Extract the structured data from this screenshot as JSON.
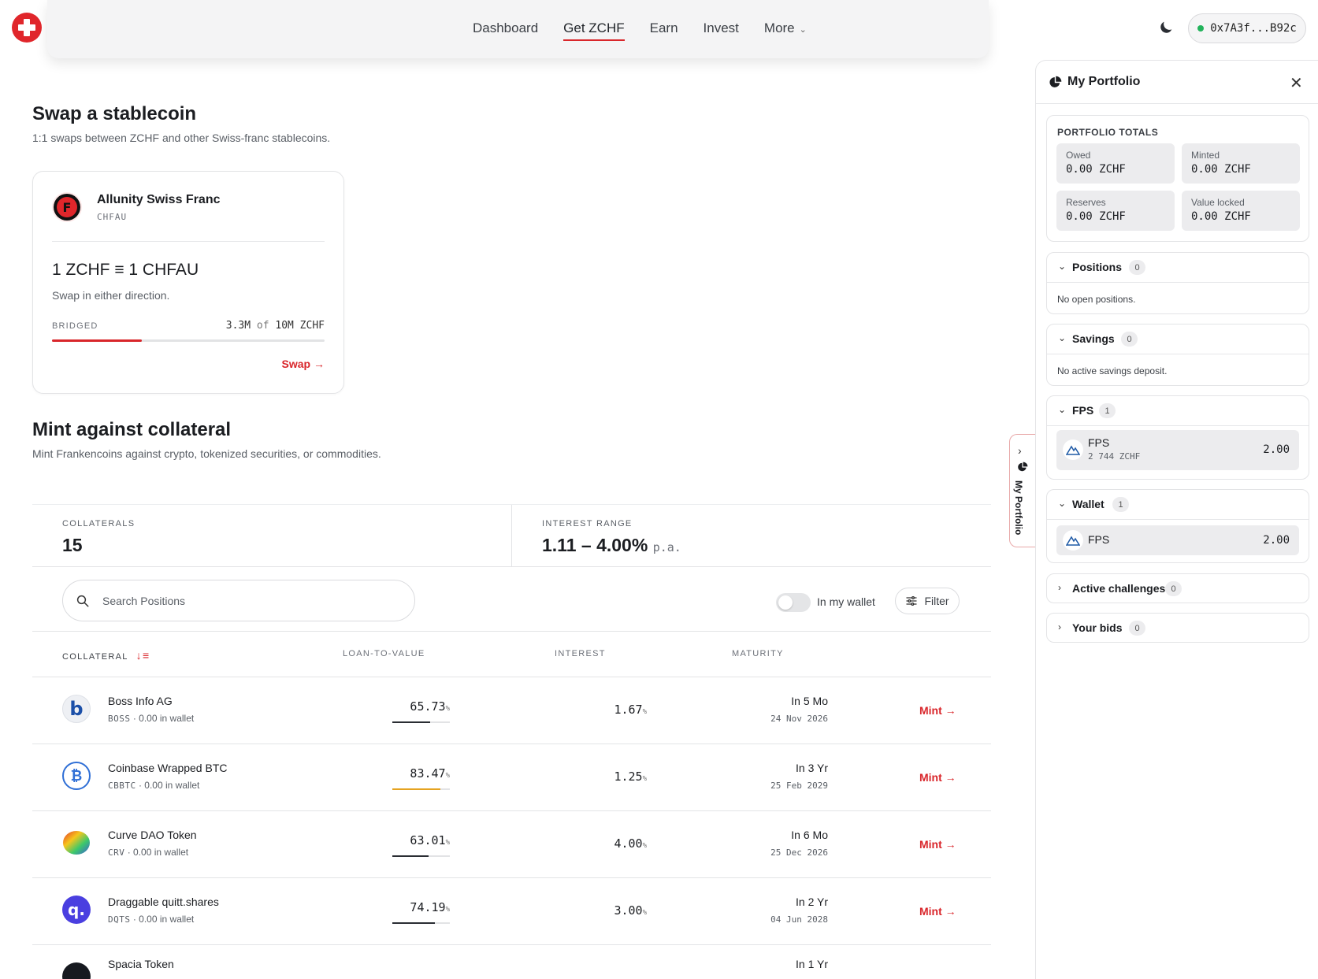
{
  "nav": {
    "items": [
      {
        "label": "Dashboard",
        "active": false
      },
      {
        "label": "Get ZCHF",
        "active": true
      },
      {
        "label": "Earn",
        "active": false
      },
      {
        "label": "Invest",
        "active": false
      },
      {
        "label": "More",
        "active": false
      }
    ],
    "wallet_address": "0x7A3f...B92c",
    "icons": {
      "logo": "swiss-cross-logo",
      "theme": "moon-icon"
    }
  },
  "swap": {
    "title": "Swap a stablecoin",
    "subtitle": "1:1 swaps between ZCHF and other Swiss-franc stablecoins.",
    "card": {
      "name": "Allunity Swiss Franc",
      "symbol": "CHFAU",
      "rate": "1 ZCHF ≡ 1 CHFAU",
      "rate_sub": "Swap in either direction.",
      "bridged_label": "BRIDGED",
      "bridged_amount": "3.3M",
      "bridged_of": "of",
      "bridged_cap": "10M ZCHF",
      "bridged_fraction": 0.33,
      "action": "Swap"
    }
  },
  "mint": {
    "title": "Mint against collateral",
    "subtitle": "Mint Frankencoins against crypto, tokenized securities, or commodities.",
    "stats": {
      "collaterals_label": "COLLATERALS",
      "collaterals_value": "15",
      "interest_label": "INTEREST RANGE",
      "interest_value": "1.11 – 4.00%",
      "interest_suffix": "p.a."
    },
    "search_placeholder": "Search Positions",
    "toggle_label": "In my wallet",
    "filter_label": "Filter",
    "columns": {
      "collateral": "COLLATERAL",
      "ltv": "LOAN-TO-VALUE",
      "interest": "INTEREST",
      "maturity": "MATURITY"
    },
    "rows": [
      {
        "name": "Boss Info AG",
        "symbol": "BOSS",
        "wallet": "0.00 in wallet",
        "ltv": "65.73",
        "ltv_fraction": 0.6573,
        "ltv_color": "#2a2d33",
        "interest": "1.67",
        "maturity": "In 5 Mo",
        "date": "24 Nov 2026",
        "action": "Mint",
        "logo": "boss-logo"
      },
      {
        "name": "Coinbase Wrapped BTC",
        "symbol": "CBBTC",
        "wallet": "0.00 in wallet",
        "ltv": "83.47",
        "ltv_fraction": 0.8347,
        "ltv_color": "#e5a321",
        "interest": "1.25",
        "maturity": "In 3 Yr",
        "date": "25 Feb 2029",
        "action": "Mint",
        "logo": "bitcoin-logo"
      },
      {
        "name": "Curve DAO Token",
        "symbol": "CRV",
        "wallet": "0.00 in wallet",
        "ltv": "63.01",
        "ltv_fraction": 0.6301,
        "ltv_color": "#2a2d33",
        "interest": "4.00",
        "maturity": "In 6 Mo",
        "date": "25 Dec 2026",
        "action": "Mint",
        "logo": "curve-logo"
      },
      {
        "name": "Draggable quitt.shares",
        "symbol": "DQTS",
        "wallet": "0.00 in wallet",
        "ltv": "74.19",
        "ltv_fraction": 0.7419,
        "ltv_color": "#2a2d33",
        "interest": "3.00",
        "maturity": "In 2 Yr",
        "date": "04 Jun 2028",
        "action": "Mint",
        "logo": "quitt-logo"
      },
      {
        "name": "Spacia Token",
        "symbol": "",
        "wallet": "",
        "ltv": "",
        "ltv_fraction": 0,
        "ltv_color": "#2a2d33",
        "interest": "",
        "maturity": "In 1 Yr",
        "date": "",
        "action": "",
        "logo": "spacia-logo"
      }
    ]
  },
  "sidetab": {
    "label": "My Portfolio"
  },
  "portfolio": {
    "title": "My Portfolio",
    "totals_label": "PORTFOLIO TOTALS",
    "totals": [
      {
        "key": "Owed",
        "value": "0.00 ZCHF"
      },
      {
        "key": "Minted",
        "value": "0.00 ZCHF"
      },
      {
        "key": "Reserves",
        "value": "0.00 ZCHF"
      },
      {
        "key": "Value locked",
        "value": "0.00 ZCHF"
      }
    ],
    "sections": {
      "positions": {
        "title": "Positions",
        "count": "0",
        "empty": "No open positions."
      },
      "savings": {
        "title": "Savings",
        "count": "0",
        "empty": "No active savings deposit."
      },
      "fps": {
        "title": "FPS",
        "count": "1",
        "asset": "FPS",
        "asset_sub": "2 744 ZCHF",
        "asset_value": "2.00"
      },
      "wallet": {
        "title": "Wallet",
        "count": "1",
        "asset": "FPS",
        "asset_value": "2.00"
      },
      "challenges": {
        "title": "Active challenges",
        "count": "0"
      },
      "bids": {
        "title": "Your bids",
        "count": "0"
      }
    }
  }
}
